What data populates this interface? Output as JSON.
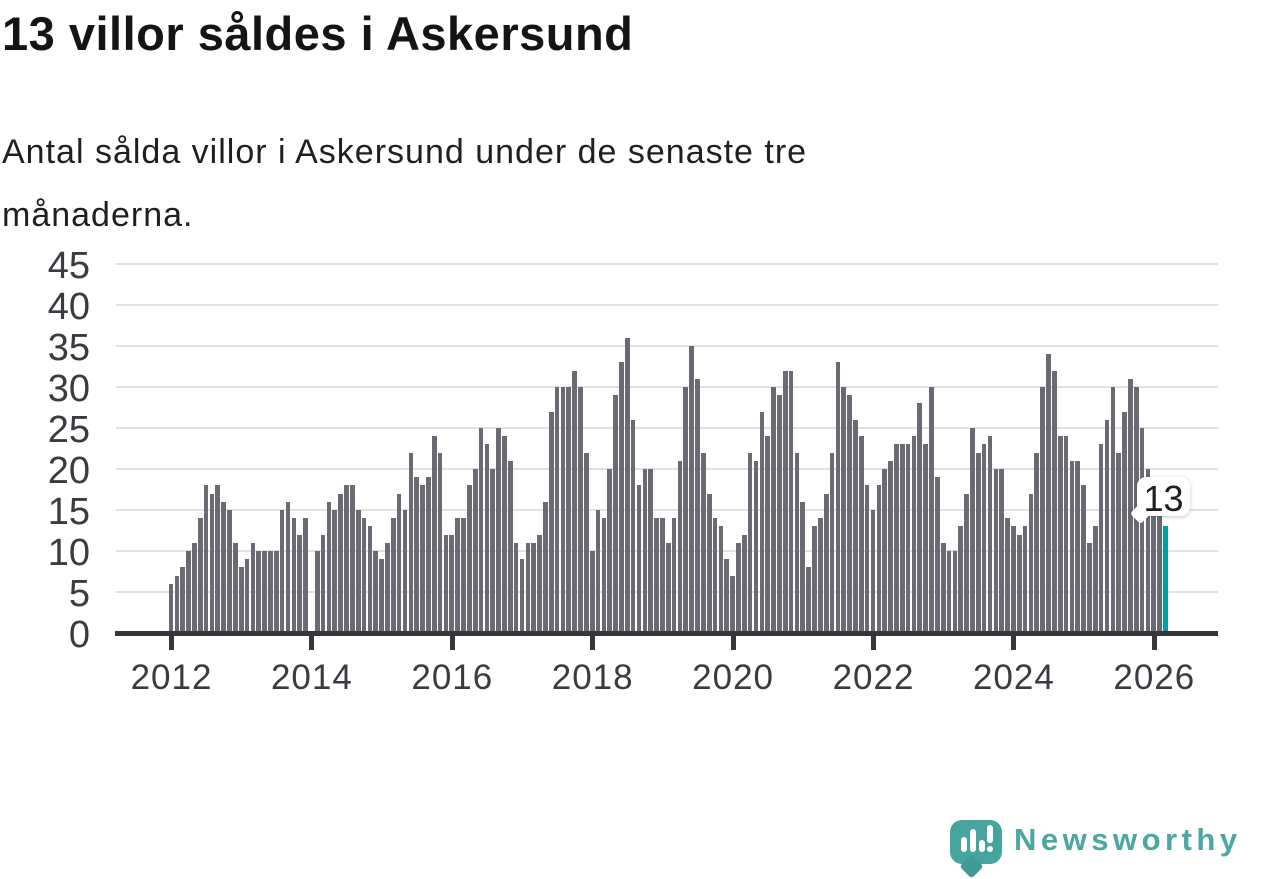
{
  "title": "13 villor såldes i Askersund",
  "subtitle_lines": [
    "Antal sålda villor i Askersund under de senaste tre",
    "månaderna."
  ],
  "callout": {
    "label": "13"
  },
  "footer": {
    "brand": "Newsworthy"
  },
  "icons": {
    "logo": "newsworthy-speech-bubble-bar-chart-icon",
    "callout_tail": "callout-pointer"
  },
  "colors": {
    "bar": "#6a6a72",
    "highlight": "#00a0a0",
    "grid": "#e1e1e1",
    "axis": "#35363b",
    "tick_text": "#3a3b40",
    "title_text": "#141414",
    "brand_teal": "#4aa7a2"
  },
  "chart_data": {
    "type": "bar",
    "title": "13 villor såldes i Askersund",
    "subtitle": "Antal sålda villor i Askersund under de senaste tre månaderna.",
    "xlabel": "",
    "ylabel": "",
    "x_start": "2012-01",
    "x_end": "2026-03",
    "x_tick_labels": [
      "2012",
      "2014",
      "2016",
      "2018",
      "2020",
      "2022",
      "2024",
      "2026"
    ],
    "y_ticks": [
      0,
      5,
      10,
      15,
      20,
      25,
      30,
      35,
      40,
      45
    ],
    "ylim": [
      0,
      45
    ],
    "grid": true,
    "legend": false,
    "highlight_last": true,
    "last_value": 13,
    "values": [
      6,
      7,
      8,
      10,
      11,
      14,
      18,
      17,
      18,
      16,
      15,
      11,
      8,
      9,
      11,
      10,
      10,
      10,
      10,
      15,
      16,
      14,
      12,
      14,
      0,
      10,
      12,
      16,
      15,
      17,
      18,
      18,
      15,
      14,
      13,
      10,
      9,
      11,
      14,
      17,
      15,
      22,
      19,
      18,
      19,
      24,
      22,
      12,
      12,
      14,
      14,
      18,
      20,
      25,
      23,
      20,
      25,
      24,
      21,
      11,
      9,
      11,
      11,
      12,
      16,
      27,
      30,
      30,
      30,
      32,
      30,
      22,
      10,
      15,
      14,
      20,
      29,
      33,
      36,
      26,
      18,
      20,
      20,
      14,
      14,
      11,
      14,
      21,
      30,
      35,
      31,
      22,
      17,
      14,
      13,
      9,
      7,
      11,
      12,
      22,
      21,
      27,
      24,
      30,
      29,
      32,
      32,
      22,
      16,
      8,
      13,
      14,
      17,
      22,
      33,
      30,
      29,
      26,
      24,
      18,
      15,
      18,
      20,
      21,
      23,
      23,
      23,
      24,
      28,
      23,
      30,
      19,
      11,
      10,
      10,
      13,
      17,
      25,
      22,
      23,
      24,
      20,
      20,
      14,
      13,
      12,
      13,
      17,
      22,
      30,
      34,
      32,
      24,
      24,
      21,
      21,
      18,
      11,
      13,
      23,
      26,
      30,
      22,
      27,
      31,
      30,
      25,
      20,
      18,
      15,
      13
    ]
  }
}
